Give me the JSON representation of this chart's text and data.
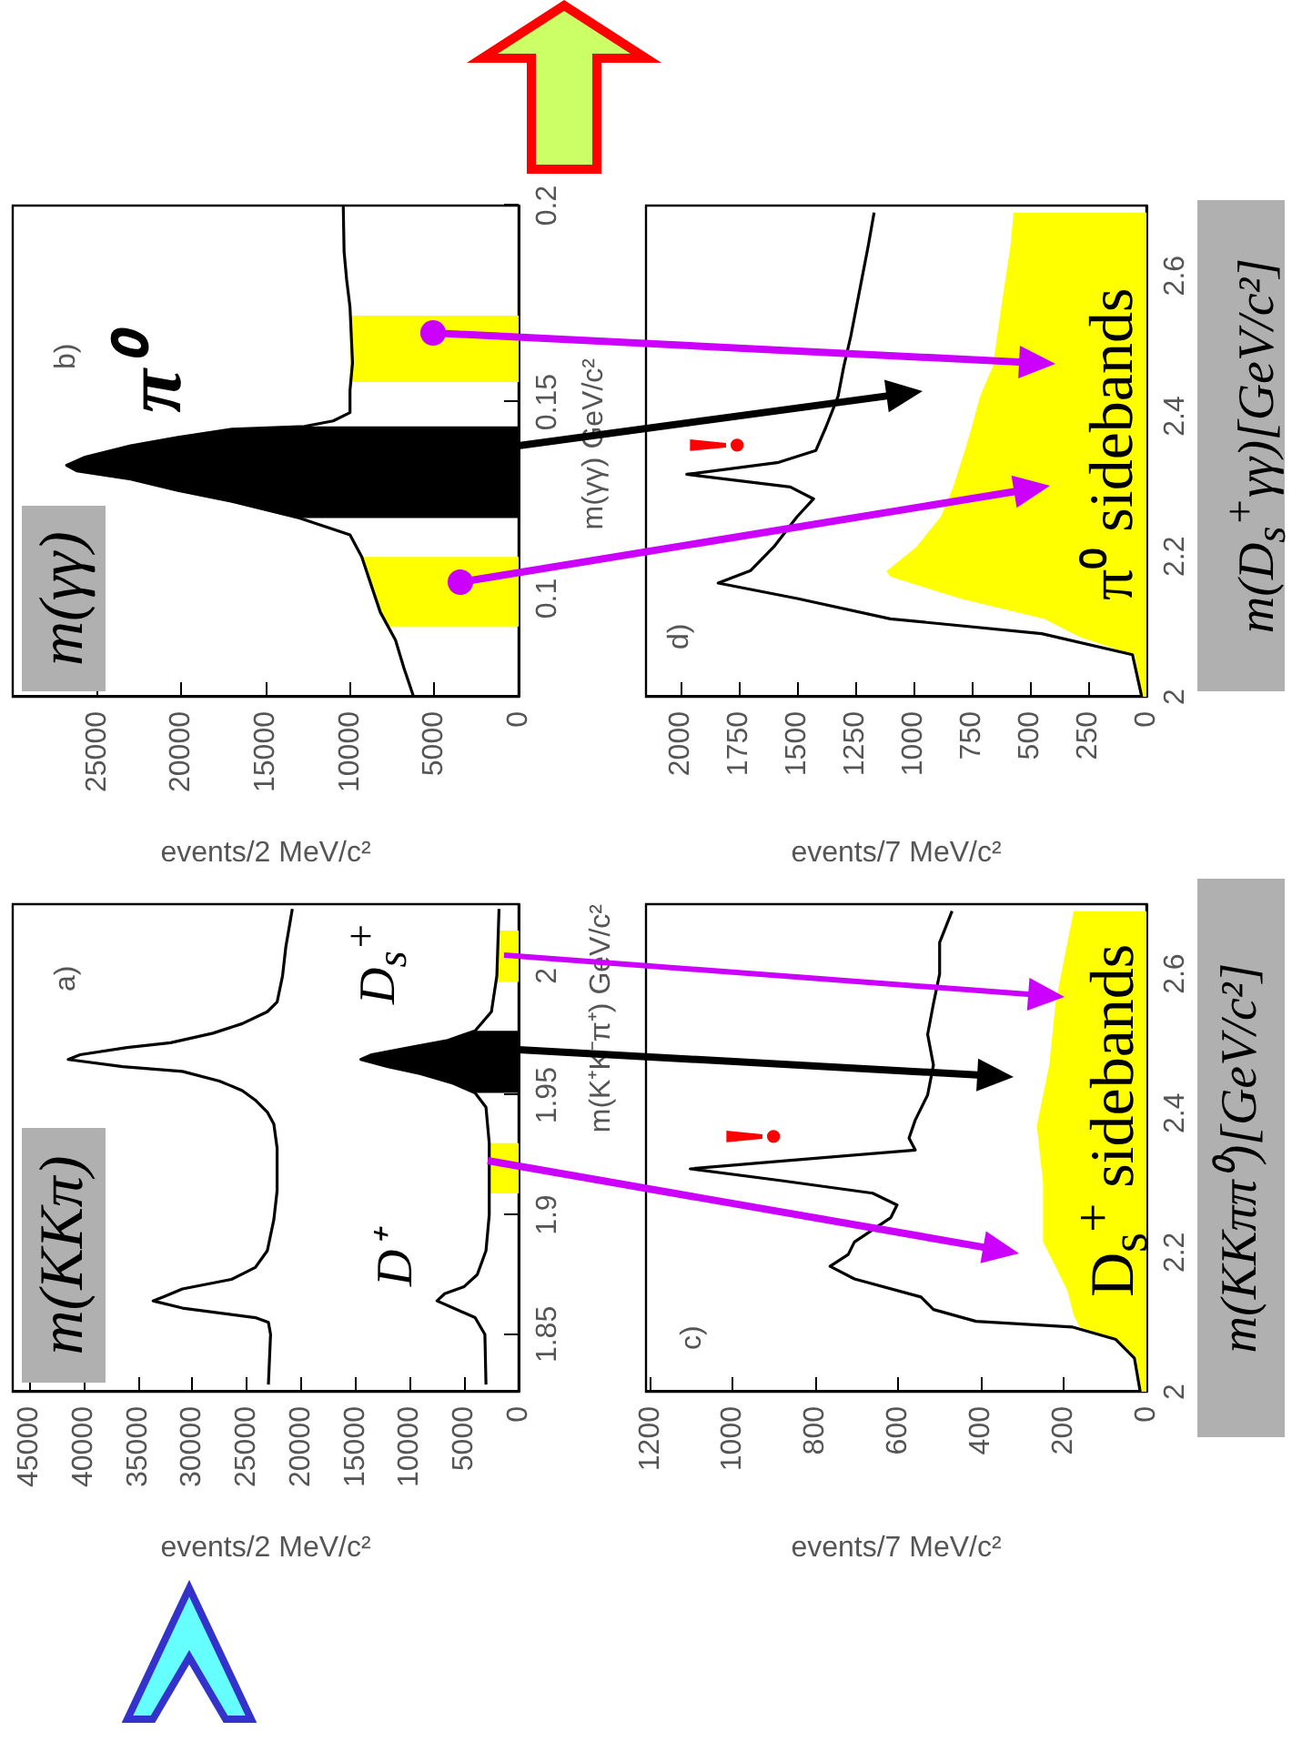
{
  "chart_data": [
    {
      "type": "line",
      "orientation": "horizontal",
      "xlabel": "events/2 MeV/c²",
      "ylabel": "m(K⁺K⁻π⁺) GeV/c²",
      "xlim": [
        46500,
        0
      ],
      "ylim": [
        1.826,
        2.03
      ],
      "yticks": [
        1.85,
        1.9,
        1.95,
        2
      ],
      "xticks": [
        45000,
        40000,
        35000,
        30000,
        25000,
        20000,
        15000,
        10000,
        5000,
        0
      ],
      "annotations": [
        "m(KKπ)",
        "a)",
        "D⁺",
        "D$_{s}$$^{+}$"
      ],
      "series": [
        {
          "type": "area",
          "color": "#ffff00",
          "x": [
            1.909,
            1.92,
            1.93
          ],
          "values": [
            2700,
            2700,
            2700
          ]
        },
        {
          "type": "area",
          "color": "#ffff00",
          "x": [
            1.9975,
            2.008,
            2.019
          ],
          "values": [
            2000,
            1950,
            1900
          ]
        },
        {
          "type": "area",
          "color": "#000000",
          "x": [
            1.951,
            1.955,
            1.959,
            1.962,
            1.965,
            1.967,
            1.97,
            1.973,
            1.977
          ],
          "values": [
            4000,
            6000,
            9000,
            12000,
            14500,
            13500,
            10000,
            6500,
            4000
          ]
        },
        {
          "color": "#000000",
          "x": [
            1.829,
            1.85,
            1.855,
            1.857,
            1.861,
            1.864,
            1.866,
            1.869,
            1.873,
            1.878,
            1.885,
            1.898,
            1.91,
            1.928,
            1.938,
            1.943,
            1.948,
            1.952,
            1.956,
            1.96,
            1.962,
            1.965,
            1.967,
            1.97,
            1.972,
            1.976,
            1.98,
            1.985,
            1.989,
            2.0,
            2.012,
            2.028
          ],
          "values": [
            23000,
            22800,
            23000,
            24200,
            30900,
            33600,
            32500,
            30900,
            26400,
            24200,
            23100,
            22500,
            22200,
            22200,
            22500,
            23100,
            24200,
            25400,
            27500,
            30900,
            36400,
            41400,
            40300,
            36000,
            32000,
            28100,
            25400,
            23100,
            22200,
            21700,
            21400,
            20800
          ]
        },
        {
          "color": "#000000",
          "x": [
            1.829,
            1.85,
            1.857,
            1.861,
            1.864,
            1.867,
            1.87,
            1.875,
            1.885,
            1.9,
            1.93,
            1.945,
            1.951,
            1.955,
            1.959,
            1.962,
            1.965,
            1.967,
            1.97,
            1.973,
            1.977,
            1.985,
            2.0,
            2.028
          ],
          "values": [
            3000,
            3100,
            4000,
            6000,
            7500,
            6800,
            5000,
            3800,
            3000,
            2700,
            2700,
            3000,
            4000,
            6000,
            9000,
            12000,
            14500,
            13500,
            10000,
            6500,
            4000,
            2500,
            2000,
            1800
          ]
        }
      ]
    },
    {
      "type": "line",
      "orientation": "horizontal",
      "xlabel": "events/2 MeV/c²",
      "ylabel": "m(γγ) GeV/c²",
      "xlim": [
        30000,
        0
      ],
      "ylim": [
        0.075,
        0.2
      ],
      "yticks": [
        0.1,
        0.15,
        0.2
      ],
      "xticks": [
        25000,
        20000,
        15000,
        10000,
        5000,
        0
      ],
      "annotations": [
        "m(γγ)",
        "b)",
        "π⁰"
      ],
      "series": [
        {
          "type": "area",
          "color": "#ffff00",
          "x": [
            0.0929,
            0.1035,
            0.1106
          ],
          "values": [
            7800,
            8750,
            9300
          ]
        },
        {
          "type": "area",
          "color": "#ffff00",
          "x": [
            0.1551,
            0.163,
            0.172
          ],
          "values": [
            10000,
            10000,
            10000
          ]
        },
        {
          "type": "area",
          "color": "#000000",
          "x": [
            0.1205,
            0.1247,
            0.1275,
            0.1304,
            0.1325,
            0.1339,
            0.136,
            0.1389,
            0.141,
            0.1431,
            0.1438
          ],
          "values": [
            13000,
            17000,
            20200,
            23000,
            26200,
            26800,
            25700,
            23000,
            20200,
            17000,
            12700
          ]
        },
        {
          "color": "#000000",
          "x": [
            0.0753,
            0.0823,
            0.0894,
            0.0965,
            0.1035,
            0.1106,
            0.1162,
            0.1205,
            0.1247,
            0.1275,
            0.1304,
            0.1325,
            0.1339,
            0.136,
            0.1389,
            0.141,
            0.1431,
            0.1438,
            0.1452,
            0.1473,
            0.153,
            0.16,
            0.1742,
            0.1812,
            0.1883,
            0.2
          ],
          "values": [
            6250,
            6800,
            7300,
            8200,
            8750,
            9300,
            10000,
            13000,
            17000,
            20200,
            23000,
            26200,
            26800,
            25700,
            23000,
            20200,
            17000,
            12700,
            11000,
            10000,
            10000,
            9850,
            10000,
            10200,
            10350,
            10400
          ]
        }
      ]
    },
    {
      "type": "line",
      "orientation": "horizontal",
      "xlabel": "events/7 MeV/c²",
      "ylabel": "m(KKππ⁰)[GeV/c²]",
      "xlim": [
        1210,
        0
      ],
      "ylim": [
        2,
        2.7
      ],
      "yticks": [
        2,
        2.2,
        2.4,
        2.6
      ],
      "xticks": [
        1200,
        1000,
        800,
        600,
        400,
        200,
        0
      ],
      "annotations": [
        "c)",
        "!",
        "D$_{s}$$^{+}$ sidebands"
      ],
      "series": [
        {
          "type": "area",
          "color": "#ffff00",
          "x": [
            2.0,
            2.048,
            2.075,
            2.093,
            2.11,
            2.145,
            2.18,
            2.215,
            2.259,
            2.3,
            2.382,
            2.469,
            2.557,
            2.6,
            2.645,
            2.69
          ],
          "values": [
            15,
            29,
            74,
            162,
            176,
            191,
            220,
            250,
            250,
            250,
            265,
            235,
            220,
            206,
            191,
            176
          ]
        },
        {
          "color": "#000000",
          "x": [
            2.0,
            2.048,
            2.075,
            2.093,
            2.101,
            2.118,
            2.136,
            2.162,
            2.18,
            2.197,
            2.215,
            2.25,
            2.268,
            2.285,
            2.303,
            2.32,
            2.329,
            2.347,
            2.364,
            2.39,
            2.426,
            2.469,
            2.513,
            2.557,
            2.6,
            2.645,
            2.69
          ],
          "values": [
            15,
            29,
            74,
            180,
            412,
            515,
            545,
            706,
            765,
            721,
            706,
            618,
            603,
            662,
            882,
            1103,
            926,
            559,
            574,
            559,
            529,
            515,
            529,
            515,
            500,
            500,
            470
          ]
        }
      ]
    },
    {
      "type": "line",
      "orientation": "horizontal",
      "xlabel": "events/7 MeV/c²",
      "ylabel": "m(D$_{s}$$^{+}$γγ)[GeV/c²]",
      "xlim": [
        2150,
        0
      ],
      "ylim": [
        2,
        2.7
      ],
      "yticks": [
        2,
        2.2,
        2.4,
        2.6
      ],
      "xticks": [
        2000,
        1750,
        1500,
        1250,
        1000,
        750,
        500,
        250,
        0
      ],
      "annotations": [
        "d)",
        "!",
        "π⁰ sidebands"
      ],
      "series": [
        {
          "type": "area",
          "color": "#ffff00",
          "x": [
            2.0,
            2.059,
            2.085,
            2.111,
            2.14,
            2.171,
            2.179,
            2.214,
            2.257,
            2.299,
            2.351,
            2.385,
            2.428,
            2.471,
            2.557,
            2.643,
            2.69
          ],
          "values": [
            20,
            50,
            285,
            440,
            800,
            1100,
            1117,
            987,
            883,
            830,
            780,
            750,
            715,
            660,
            623,
            584,
            571
          ]
        },
        {
          "color": "#000000",
          "x": [
            2.0,
            2.06,
            2.09,
            2.111,
            2.14,
            2.162,
            2.18,
            2.214,
            2.257,
            2.282,
            2.299,
            2.317,
            2.334,
            2.351,
            2.385,
            2.428,
            2.471,
            2.514,
            2.557,
            2.6,
            2.643,
            2.69
          ],
          "values": [
            20,
            60,
            450,
            1100,
            1500,
            1840,
            1700,
            1600,
            1500,
            1430,
            1530,
            1975,
            1580,
            1420,
            1376,
            1325,
            1300,
            1270,
            1245,
            1220,
            1195,
            1170
          ]
        }
      ]
    }
  ]
}
